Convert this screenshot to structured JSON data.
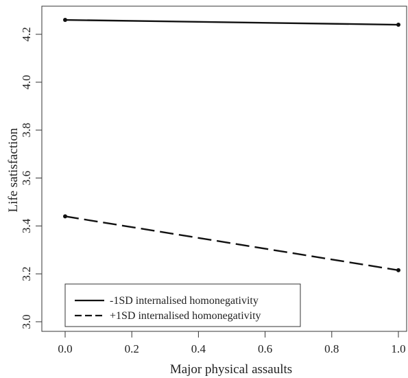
{
  "chart_data": {
    "type": "line",
    "title": "",
    "xlabel": "Major physical assaults",
    "ylabel": "Life satisfaction",
    "xlim": [
      0.0,
      1.0
    ],
    "ylim": [
      3.0,
      4.25
    ],
    "xticks": [
      "0.0",
      "0.2",
      "0.4",
      "0.6",
      "0.8",
      "1.0"
    ],
    "yticks": [
      "3.0",
      "3.2",
      "3.4",
      "3.6",
      "3.8",
      "4.0",
      "4.2"
    ],
    "grid": false,
    "legend_position": "bottom-left",
    "series": [
      {
        "name": "-1SD internalised homonegativity",
        "style": "solid",
        "color": "#111111",
        "x": [
          0.0,
          1.0
        ],
        "y": [
          4.26,
          4.24
        ]
      },
      {
        "name": "+1SD internalised homonegativity",
        "style": "dashed",
        "color": "#111111",
        "x": [
          0.0,
          1.0
        ],
        "y": [
          3.44,
          3.215
        ]
      }
    ]
  }
}
